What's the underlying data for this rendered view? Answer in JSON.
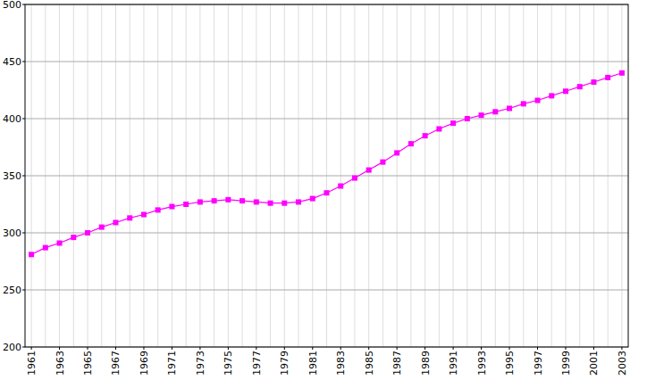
{
  "chart_data": {
    "type": "line",
    "categories": [
      "1961",
      null,
      "1963",
      null,
      "1965",
      null,
      "1967",
      null,
      "1969",
      null,
      "1971",
      null,
      "1973",
      null,
      "1975",
      null,
      "1977",
      null,
      "1979",
      null,
      "1981",
      null,
      "1983",
      null,
      "1985",
      null,
      "1987",
      null,
      "1989",
      null,
      "1991",
      null,
      "1993",
      null,
      "1995",
      null,
      "1997",
      null,
      "1999",
      null,
      "2001",
      null,
      "2003"
    ],
    "values": [
      281,
      287,
      291,
      296,
      300,
      305,
      309,
      313,
      316,
      320,
      323,
      325,
      327,
      328,
      329,
      328,
      327,
      326,
      326,
      327,
      330,
      335,
      341,
      348,
      355,
      362,
      370,
      378,
      385,
      391,
      396,
      400,
      403,
      406,
      409,
      413,
      416,
      420,
      424,
      428,
      432,
      436,
      440
    ],
    "color": "#ff00ff",
    "marker": "square",
    "ylim": [
      200,
      500
    ],
    "yticks": [
      200,
      250,
      300,
      350,
      400,
      450,
      500
    ],
    "grid": true
  }
}
